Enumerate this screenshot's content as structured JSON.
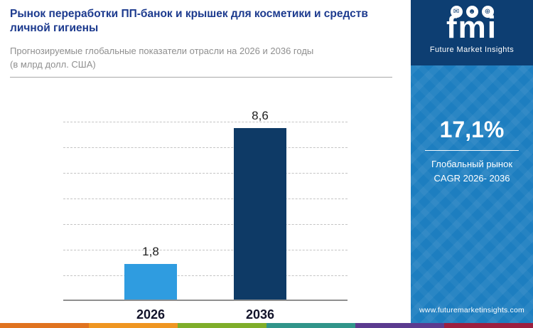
{
  "header": {
    "title": "Рынок переработки ПП-банок и крышек для косметики и средств личной гигиены",
    "subtitle_line1": "Прогнозируемые глобальные показатели отрасли на 2026 и 2036 годы",
    "subtitle_line2": "(в млрд долл. США)"
  },
  "chart_data": {
    "type": "bar",
    "categories": [
      "2026",
      "2036"
    ],
    "values": [
      1.8,
      8.6
    ],
    "value_labels": [
      "1,8",
      "8,6"
    ],
    "title": "Рынок переработки ПП-банок и крышек для косметики и средств личной гигиены",
    "xlabel": "",
    "ylabel": "млрд долл. США",
    "ylim": [
      0,
      9
    ],
    "grid": "dashed-horizontal",
    "gridline_count": 7,
    "legend": "none",
    "bar_colors": [
      "#2f9ce0",
      "#0e3a66"
    ]
  },
  "sidebar": {
    "logo_text": "fmi",
    "logo_subtext": "Future Market Insights",
    "logo_icons": [
      {
        "name": "chat-envelope-icon",
        "glyph": "✉"
      },
      {
        "name": "person-icon",
        "glyph": "☻"
      },
      {
        "name": "globe-icon",
        "glyph": "⊕"
      }
    ],
    "cagr_value": "17,1%",
    "cagr_label_line1": "Глобальный рынок",
    "cagr_label_line2": "CAGR 2026- 2036",
    "website": "www.futuremarketinsights.com",
    "background_color": "#1d7ec0",
    "header_color": "#0d3e72"
  },
  "footer": {
    "strip_colors": [
      "#e0731f",
      "#ef9621",
      "#7fae2a",
      "#31958a",
      "#5b3b8f",
      "#9c1f3f"
    ]
  }
}
